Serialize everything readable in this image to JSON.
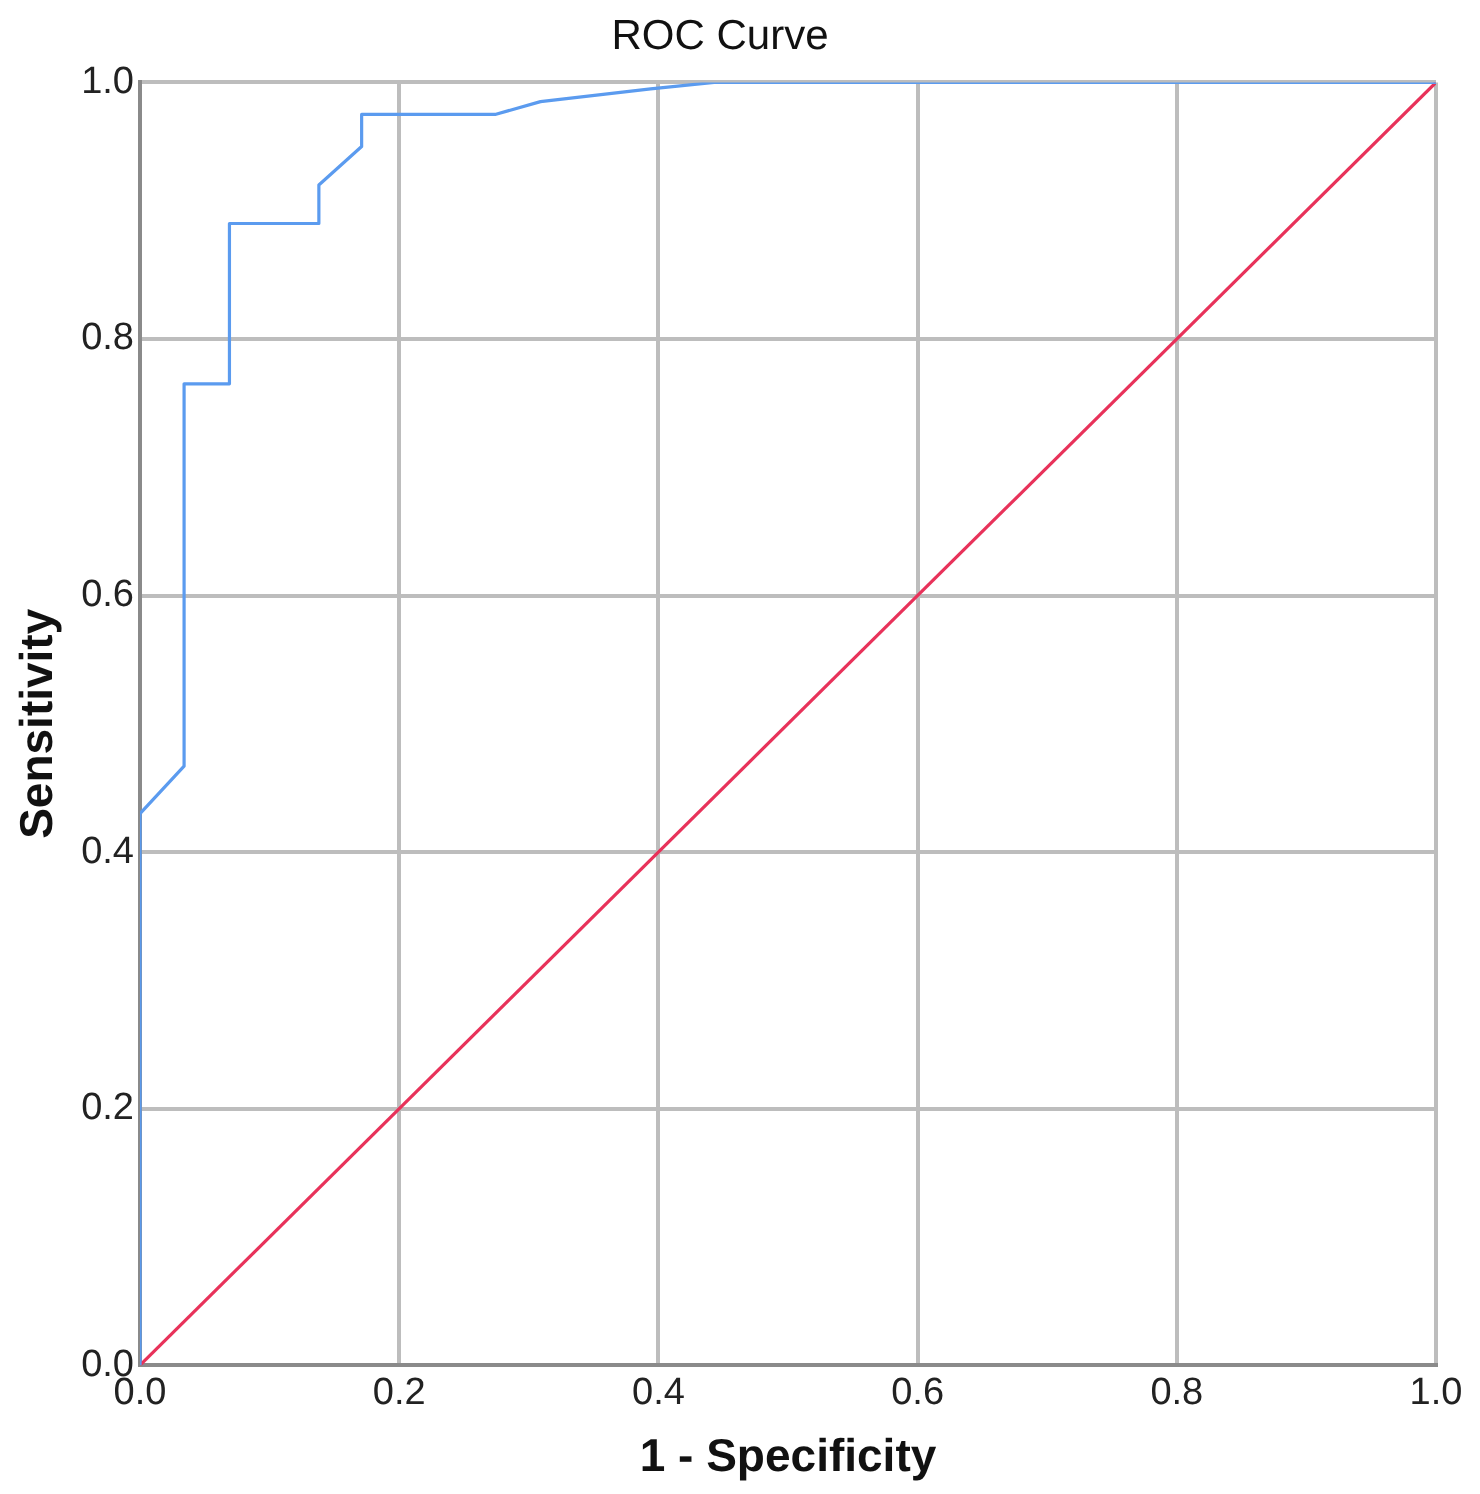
{
  "chart_data": {
    "type": "line",
    "title": "ROC Curve",
    "xlabel": "1 - Specificity",
    "ylabel": "Sensitivity",
    "xlim": [
      0,
      1
    ],
    "ylim": [
      0,
      1
    ],
    "xticks": [
      {
        "value": 0,
        "label": "0.0"
      },
      {
        "value": 0.2,
        "label": "0.2"
      },
      {
        "value": 0.4,
        "label": "0.4"
      },
      {
        "value": 0.6,
        "label": "0.6"
      },
      {
        "value": 0.8,
        "label": "0.8"
      },
      {
        "value": 1,
        "label": "1.0"
      }
    ],
    "yticks": [
      {
        "value": 0,
        "label": "0.0"
      },
      {
        "value": 0.2,
        "label": "0.2"
      },
      {
        "value": 0.4,
        "label": "0.4"
      },
      {
        "value": 0.6,
        "label": "0.6"
      },
      {
        "value": 0.8,
        "label": "0.8"
      },
      {
        "value": 1,
        "label": "1.0"
      }
    ],
    "grid": true,
    "legend": false,
    "marker": "none",
    "line_style": "solid",
    "series": [
      {
        "color": "#5b9bef",
        "x": [
          0,
          0,
          0.034,
          0.034,
          0.069,
          0.069,
          0.138,
          0.138,
          0.171,
          0.171,
          0.274,
          0.309,
          0.394,
          0.443,
          1
        ],
        "values": [
          0,
          0.43,
          0.467,
          0.765,
          0.765,
          0.89,
          0.89,
          0.92,
          0.95,
          0.975,
          0.975,
          0.985,
          0.995,
          1,
          1
        ]
      },
      {
        "color": "#e8325a",
        "x": [
          0,
          1
        ],
        "values": [
          0,
          1
        ]
      }
    ]
  }
}
